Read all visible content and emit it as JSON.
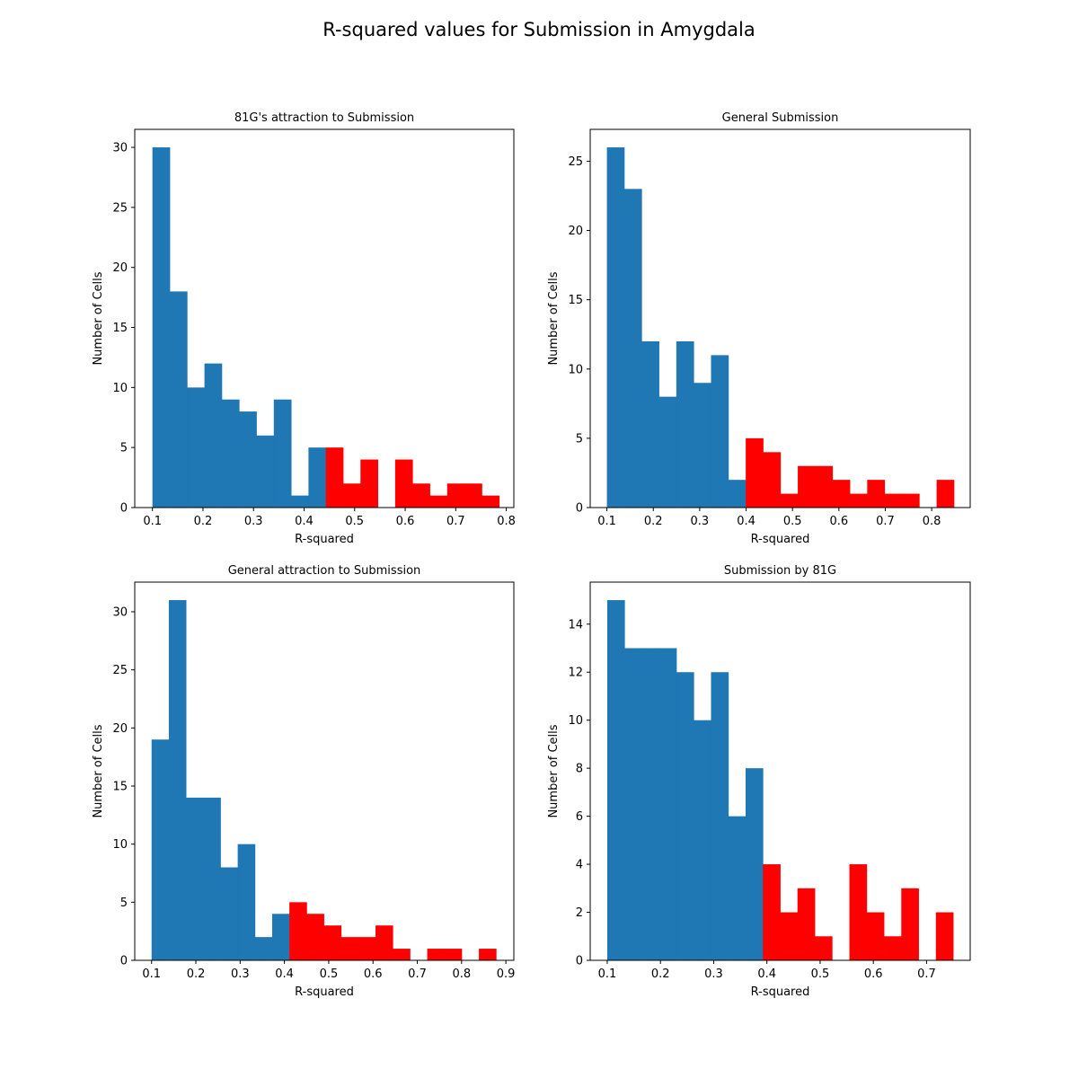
{
  "figure": {
    "title": "R-squared values for Submission in Amygdala"
  },
  "colors": {
    "below_threshold": "#1f77b4",
    "above_threshold": "#ff0000"
  },
  "chart_data": [
    {
      "type": "bar",
      "title": "81G's attraction to Submission",
      "xlabel": "R-squared",
      "ylabel": "Number of Cells",
      "xlim": [
        0.065,
        0.815
      ],
      "ylim": [
        0,
        31.5
      ],
      "xticks": [
        0.1,
        0.2,
        0.3,
        0.4,
        0.5,
        0.6,
        0.7,
        0.8
      ],
      "xtick_labels": [
        "0.1",
        "0.2",
        "0.3",
        "0.4",
        "0.5",
        "0.6",
        "0.7",
        "0.8"
      ],
      "yticks": [
        0,
        5,
        10,
        15,
        20,
        25,
        30
      ],
      "ytick_labels": [
        "0",
        "5",
        "10",
        "15",
        "20",
        "25",
        "30"
      ],
      "bin_start": 0.1,
      "bin_width": 0.0343,
      "values": [
        30,
        18,
        10,
        12,
        9,
        8,
        6,
        9,
        1,
        5,
        5,
        2,
        4,
        0,
        4,
        2,
        1,
        2,
        2,
        1
      ],
      "colors": [
        "#1f77b4",
        "#1f77b4",
        "#1f77b4",
        "#1f77b4",
        "#1f77b4",
        "#1f77b4",
        "#1f77b4",
        "#1f77b4",
        "#1f77b4",
        "#1f77b4",
        "#ff0000",
        "#ff0000",
        "#ff0000",
        "#ff0000",
        "#ff0000",
        "#ff0000",
        "#ff0000",
        "#ff0000",
        "#ff0000",
        "#ff0000"
      ],
      "grid": false
    },
    {
      "type": "bar",
      "title": "General Submission",
      "xlabel": "R-squared",
      "ylabel": "Number of Cells",
      "xlim": [
        0.064,
        0.883
      ],
      "ylim": [
        0,
        27.3
      ],
      "xticks": [
        0.1,
        0.2,
        0.3,
        0.4,
        0.5,
        0.6,
        0.7,
        0.8
      ],
      "xtick_labels": [
        "0.1",
        "0.2",
        "0.3",
        "0.4",
        "0.5",
        "0.6",
        "0.7",
        "0.8"
      ],
      "yticks": [
        0,
        5,
        10,
        15,
        20,
        25
      ],
      "ytick_labels": [
        "0",
        "5",
        "10",
        "15",
        "20",
        "25"
      ],
      "bin_start": 0.1,
      "bin_width": 0.0374,
      "values": [
        26,
        23,
        12,
        8,
        12,
        9,
        11,
        2,
        5,
        4,
        1,
        3,
        3,
        2,
        1,
        2,
        1,
        1,
        0,
        2
      ],
      "colors": [
        "#1f77b4",
        "#1f77b4",
        "#1f77b4",
        "#1f77b4",
        "#1f77b4",
        "#1f77b4",
        "#1f77b4",
        "#1f77b4",
        "#ff0000",
        "#ff0000",
        "#ff0000",
        "#ff0000",
        "#ff0000",
        "#ff0000",
        "#ff0000",
        "#ff0000",
        "#ff0000",
        "#ff0000",
        "#ff0000",
        "#ff0000"
      ],
      "grid": false
    },
    {
      "type": "bar",
      "title": "General attraction to Submission",
      "xlabel": "R-squared",
      "ylabel": "Number of Cells",
      "xlim": [
        0.062,
        0.918
      ],
      "ylim": [
        0,
        32.55
      ],
      "xticks": [
        0.1,
        0.2,
        0.3,
        0.4,
        0.5,
        0.6,
        0.7,
        0.8,
        0.9
      ],
      "xtick_labels": [
        "0.1",
        "0.2",
        "0.3",
        "0.4",
        "0.5",
        "0.6",
        "0.7",
        "0.8",
        "0.9"
      ],
      "yticks": [
        0,
        5,
        10,
        15,
        20,
        25,
        30
      ],
      "ytick_labels": [
        "0",
        "5",
        "10",
        "15",
        "20",
        "25",
        "30"
      ],
      "bin_start": 0.1,
      "bin_width": 0.0389,
      "values": [
        19,
        31,
        14,
        14,
        8,
        10,
        2,
        4,
        5,
        4,
        3,
        2,
        2,
        3,
        1,
        0,
        1,
        1,
        0,
        1
      ],
      "colors": [
        "#1f77b4",
        "#1f77b4",
        "#1f77b4",
        "#1f77b4",
        "#1f77b4",
        "#1f77b4",
        "#1f77b4",
        "#1f77b4",
        "#ff0000",
        "#ff0000",
        "#ff0000",
        "#ff0000",
        "#ff0000",
        "#ff0000",
        "#ff0000",
        "#ff0000",
        "#ff0000",
        "#ff0000",
        "#ff0000",
        "#ff0000"
      ],
      "grid": false
    },
    {
      "type": "bar",
      "title": "Submission by 81G",
      "xlabel": "R-squared",
      "ylabel": "Number of Cells",
      "xlim": [
        0.068,
        0.782
      ],
      "ylim": [
        0,
        15.75
      ],
      "xticks": [
        0.1,
        0.2,
        0.3,
        0.4,
        0.5,
        0.6,
        0.7
      ],
      "xtick_labels": [
        "0.1",
        "0.2",
        "0.3",
        "0.4",
        "0.5",
        "0.6",
        "0.7"
      ],
      "yticks": [
        0,
        2,
        4,
        6,
        8,
        10,
        12,
        14
      ],
      "ytick_labels": [
        "0",
        "2",
        "4",
        "6",
        "8",
        "10",
        "12",
        "14"
      ],
      "bin_start": 0.1,
      "bin_width": 0.0325,
      "values": [
        15,
        13,
        13,
        13,
        12,
        10,
        12,
        6,
        8,
        4,
        2,
        3,
        1,
        0,
        4,
        2,
        1,
        3,
        0,
        2
      ],
      "colors": [
        "#1f77b4",
        "#1f77b4",
        "#1f77b4",
        "#1f77b4",
        "#1f77b4",
        "#1f77b4",
        "#1f77b4",
        "#1f77b4",
        "#1f77b4",
        "#ff0000",
        "#ff0000",
        "#ff0000",
        "#ff0000",
        "#ff0000",
        "#ff0000",
        "#ff0000",
        "#ff0000",
        "#ff0000",
        "#ff0000",
        "#ff0000"
      ],
      "grid": false
    }
  ]
}
